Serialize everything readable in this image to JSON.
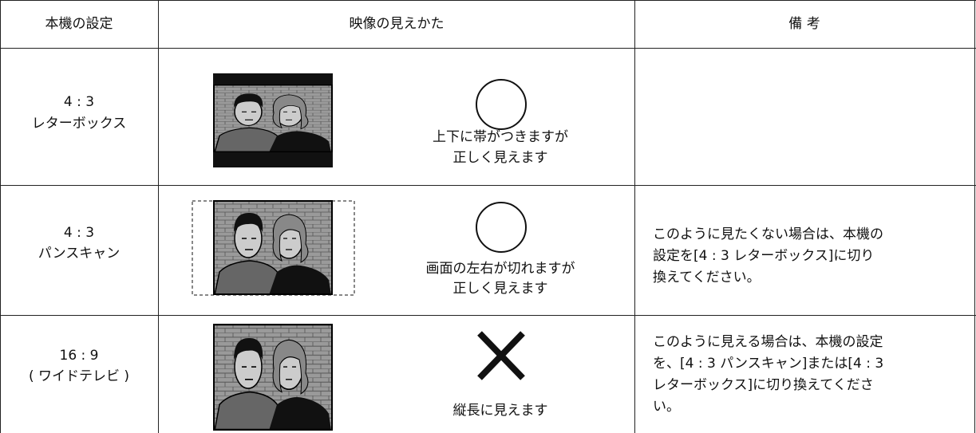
{
  "table": {
    "headers": [
      "本機の設定",
      "映像の見えかた",
      "備 考"
    ],
    "rows": [
      {
        "setting": [
          "4 : 3",
          "レターボックス"
        ],
        "view": [
          "上下に帯がつきますが",
          "正しく見えます"
        ],
        "note": []
      },
      {
        "setting": [
          "4 : 3",
          "パンスキャン"
        ],
        "view": [
          "画面の左右が切れますが",
          "正しく見えます"
        ],
        "note": [
          "このように見たくない場合は、本機の",
          "設定を[4 : 3 レターボックス]に切り",
          "換えてください。"
        ]
      },
      {
        "setting": [
          "16 : 9",
          "( ワイドテレビ )"
        ],
        "view": [
          "縦長に見えます"
        ],
        "note": [
          "このように見える場合は、本機の設定",
          "を、[4 : 3 パンスキャン]または[4 : 3",
          "レターボックス]に切り換えてくださ",
          "い。"
        ]
      }
    ]
  }
}
